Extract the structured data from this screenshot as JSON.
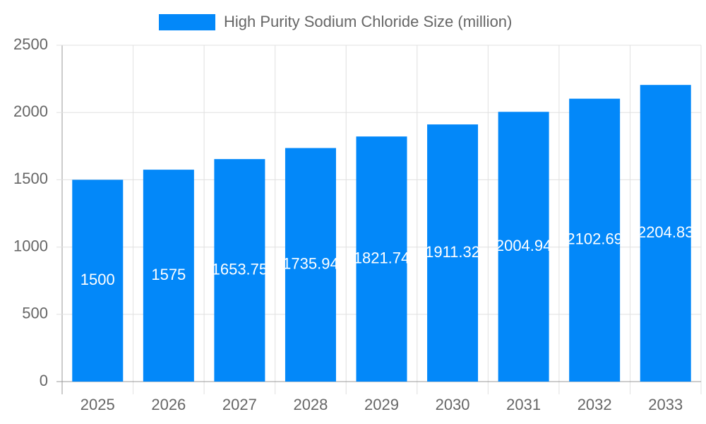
{
  "chart_data": {
    "type": "bar",
    "categories": [
      "2025",
      "2026",
      "2027",
      "2028",
      "2029",
      "2030",
      "2031",
      "2032",
      "2033"
    ],
    "series": [
      {
        "name": "High Purity Sodium Chloride Size (million)",
        "color": "#0388f9",
        "values": [
          1500,
          1575,
          1653.75,
          1735.94,
          1821.74,
          1911.32,
          2004.94,
          2102.69,
          2204.83
        ]
      }
    ],
    "ylim": [
      0,
      2500
    ],
    "yticks": [
      0,
      500,
      1000,
      1500,
      2000,
      2500
    ],
    "grid": true,
    "legend": "top"
  }
}
